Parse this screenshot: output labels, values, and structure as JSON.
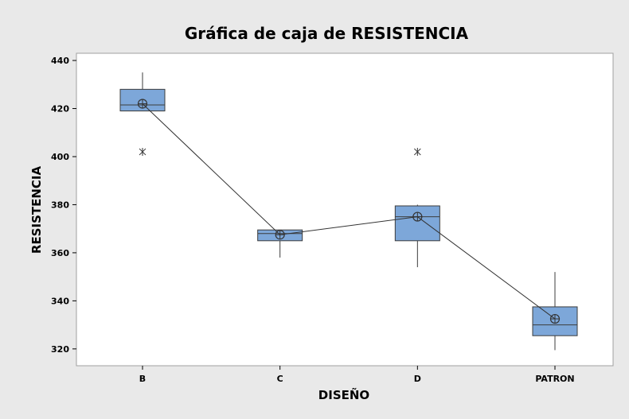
{
  "chart_data": {
    "type": "box",
    "title": "Gráfica de caja de RESISTENCIA",
    "xlabel": "DISEÑO",
    "ylabel": "RESISTENCIA",
    "ylim": [
      313,
      443
    ],
    "yticks": [
      320,
      340,
      360,
      380,
      400,
      420,
      440
    ],
    "categories": [
      "B",
      "C",
      "D",
      "PATRON"
    ],
    "series": [
      {
        "category": "B",
        "whisker_low": 419,
        "q1": 419,
        "median": 421.5,
        "q3": 428,
        "whisker_high": 435,
        "mean": 422,
        "outliers": [
          402
        ]
      },
      {
        "category": "C",
        "whisker_low": 358,
        "q1": 365,
        "median": 368,
        "q3": 369.5,
        "whisker_high": 369.5,
        "mean": 367.5,
        "outliers": []
      },
      {
        "category": "D",
        "whisker_low": 354,
        "q1": 365,
        "median": 375,
        "q3": 379.5,
        "whisker_high": 380,
        "mean": 375,
        "outliers": [
          402
        ]
      },
      {
        "category": "PATRON",
        "whisker_low": 319.5,
        "q1": 325.5,
        "median": 330,
        "q3": 337.5,
        "whisker_high": 352,
        "mean": 332.5,
        "outliers": []
      }
    ],
    "mean_connect_line": true,
    "grid": false,
    "legend": "none",
    "colors": {
      "box_fill": "#7da7d9",
      "box_stroke": "#3c3c3c",
      "plot_bg": "#ffffff",
      "page_bg": "#e9e9e9",
      "frame": "#a0a0a0"
    }
  }
}
